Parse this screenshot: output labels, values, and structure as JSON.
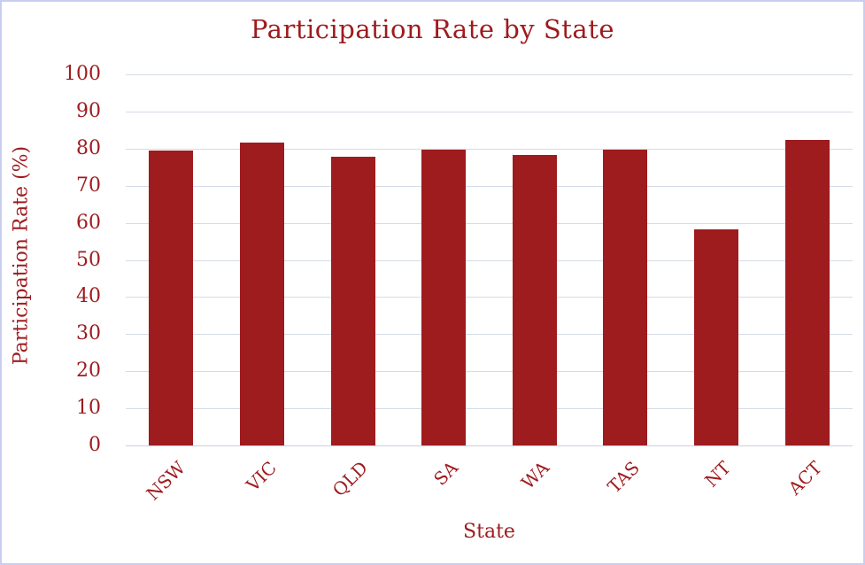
{
  "chart_data": {
    "type": "bar",
    "title": "Participation Rate by State",
    "xlabel": "State",
    "ylabel": "Participation Rate (%)",
    "categories": [
      "NSW",
      "VIC",
      "QLD",
      "SA",
      "WA",
      "TAS",
      "NT",
      "ACT"
    ],
    "values": [
      79.5,
      81.7,
      77.9,
      79.7,
      78.4,
      79.7,
      58.2,
      82.3
    ],
    "ylim": [
      0,
      100
    ],
    "yticks": [
      0,
      10,
      20,
      30,
      40,
      50,
      60,
      70,
      80,
      90,
      100
    ],
    "grid": true,
    "legend": "none",
    "bar_color": "#9E1B1E",
    "text_color": "#9E1B1E",
    "gridline_color": "#D5DBE7",
    "border_color": "#C8CEEF"
  }
}
